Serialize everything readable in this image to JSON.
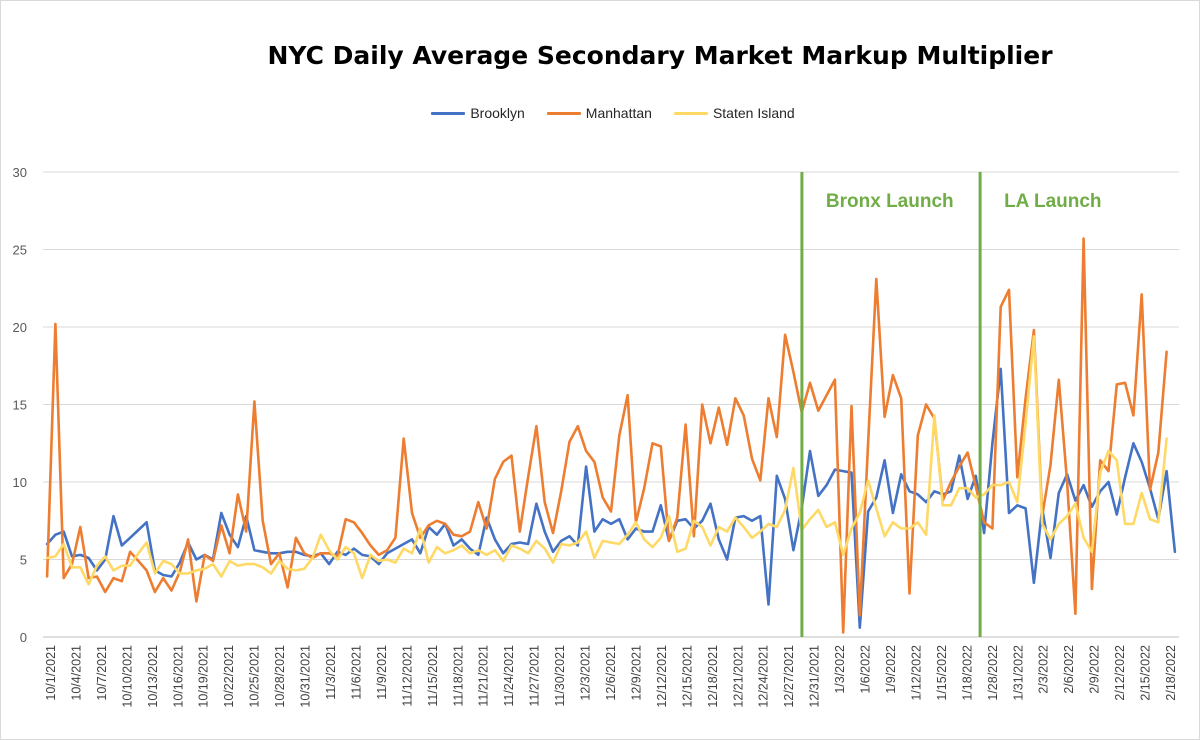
{
  "chart_data": {
    "type": "line",
    "title": "NYC Daily Average Secondary Market Markup Multiplier",
    "xlabel": "",
    "ylabel": "",
    "ylim": [
      0,
      30
    ],
    "yticks": [
      0,
      5,
      10,
      15,
      20,
      25,
      30
    ],
    "grid": "horizontal",
    "legend_position": "top",
    "x_tick_labels": [
      "10/1/2021",
      "10/4/2021",
      "10/7/2021",
      "10/10/2021",
      "10/13/2021",
      "10/16/2021",
      "10/19/2021",
      "10/22/2021",
      "10/25/2021",
      "10/28/2021",
      "10/31/2021",
      "11/3/2021",
      "11/6/2021",
      "11/9/2021",
      "11/12/2021",
      "11/15/2021",
      "11/18/2021",
      "11/21/2021",
      "11/24/2021",
      "11/27/2021",
      "11/30/2021",
      "12/3/2021",
      "12/6/2021",
      "12/9/2021",
      "12/12/2021",
      "12/15/2021",
      "12/18/2021",
      "12/21/2021",
      "12/24/2021",
      "12/27/2021",
      "12/31/2021",
      "1/3/2022",
      "1/6/2022",
      "1/9/2022",
      "1/12/2022",
      "1/15/2022",
      "1/18/2022",
      "1/28/2022",
      "1/31/2022",
      "2/3/2022",
      "2/6/2022",
      "2/9/2022",
      "2/12/2022",
      "2/15/2022",
      "2/18/2022"
    ],
    "series": [
      {
        "name": "Brooklyn",
        "color": "#4472c4",
        "values": [
          6.0,
          6.6,
          6.8,
          5.2,
          5.3,
          5.1,
          4.3,
          5.0,
          7.8,
          5.9,
          6.4,
          6.9,
          7.4,
          4.3,
          4.0,
          3.9,
          4.8,
          6.1,
          5.0,
          5.3,
          5.0,
          8.0,
          6.6,
          5.8,
          7.8,
          5.6,
          5.5,
          5.4,
          5.4,
          5.5,
          5.5,
          5.3,
          5.2,
          5.4,
          4.7,
          5.5,
          5.3,
          5.7,
          5.3,
          5.2,
          4.7,
          5.4,
          5.7,
          6.0,
          6.3,
          5.4,
          7.1,
          6.6,
          7.3,
          5.9,
          6.3,
          5.7,
          5.3,
          7.7,
          6.3,
          5.4,
          6.0,
          6.1,
          6.0,
          8.6,
          6.8,
          5.5,
          6.2,
          6.5,
          5.9,
          11.0,
          6.8,
          7.6,
          7.3,
          7.6,
          6.3,
          7.0,
          6.8,
          6.8,
          8.5,
          6.2,
          7.5,
          7.6,
          7.0,
          7.5,
          8.6,
          6.3,
          5.0,
          7.7,
          7.8,
          7.5,
          7.8,
          2.1,
          10.4,
          8.9,
          5.6,
          8.3,
          12.0,
          9.1,
          9.8,
          10.8,
          10.7,
          10.6,
          0.6,
          8.1,
          9.0,
          11.4,
          8.0,
          10.5,
          9.4,
          9.2,
          8.7,
          9.4,
          9.2,
          9.4,
          11.7,
          8.9,
          10.4,
          6.7,
          12.5,
          17.3,
          8.0,
          8.5,
          8.3,
          3.5,
          8.3,
          5.1,
          9.3,
          10.5,
          8.8,
          9.8,
          8.4,
          9.4,
          10.0,
          7.9,
          10.3,
          12.5,
          11.3,
          9.6,
          7.6,
          10.7,
          5.5
        ]
      },
      {
        "name": "Manhattan",
        "color": "#ed7d31",
        "values": [
          3.9,
          20.2,
          3.8,
          4.7,
          7.1,
          3.8,
          3.9,
          2.9,
          3.8,
          3.6,
          5.5,
          4.9,
          4.3,
          2.9,
          3.8,
          3.0,
          4.2,
          6.3,
          2.3,
          5.3,
          4.9,
          7.2,
          5.4,
          9.2,
          6.8,
          15.2,
          7.5,
          4.7,
          5.4,
          3.2,
          6.4,
          5.4,
          5.1,
          5.4,
          5.4,
          5.2,
          7.6,
          7.4,
          6.7,
          5.9,
          5.3,
          5.6,
          6.4,
          12.8,
          8.0,
          6.4,
          7.2,
          7.5,
          7.3,
          6.6,
          6.5,
          6.8,
          8.7,
          7.0,
          10.2,
          11.3,
          11.7,
          6.8,
          10.3,
          13.6,
          8.7,
          6.7,
          9.4,
          12.6,
          13.6,
          12.0,
          11.3,
          9.0,
          8.1,
          13.0,
          15.6,
          7.4,
          9.6,
          12.5,
          12.3,
          6.2,
          7.7,
          13.7,
          6.5,
          15.0,
          12.5,
          14.8,
          12.4,
          15.4,
          14.3,
          11.5,
          10.1,
          15.4,
          12.9,
          19.5,
          17.1,
          14.5,
          16.4,
          14.6,
          15.6,
          16.6,
          0.3,
          14.9,
          1.4,
          12.5,
          23.1,
          14.2,
          16.9,
          15.4,
          2.8,
          13.0,
          15.0,
          14.1,
          8.8,
          10.0,
          11.0,
          11.9,
          9.7,
          7.4,
          7.0,
          21.3,
          22.4,
          10.3,
          15.4,
          19.8,
          7.8,
          11.1,
          16.6,
          10.0,
          1.5,
          25.7,
          3.1,
          11.4,
          10.7,
          16.3,
          16.4,
          14.3,
          22.1,
          9.5,
          11.9,
          18.4
        ]
      },
      {
        "name": "Staten Island",
        "color": "#ffd966",
        "values": [
          5.1,
          5.2,
          6.0,
          4.5,
          4.5,
          3.4,
          4.6,
          5.2,
          4.3,
          4.6,
          4.6,
          5.4,
          6.1,
          4.1,
          4.9,
          4.7,
          4.1,
          4.1,
          4.3,
          4.4,
          4.7,
          3.9,
          4.9,
          4.6,
          4.7,
          4.7,
          4.5,
          4.1,
          4.9,
          4.4,
          4.3,
          4.4,
          5.1,
          6.6,
          5.6,
          5.0,
          5.8,
          5.4,
          3.8,
          5.3,
          4.9,
          5.0,
          4.8,
          5.7,
          5.4,
          7.0,
          4.8,
          5.8,
          5.4,
          5.6,
          5.9,
          5.4,
          5.6,
          5.3,
          5.6,
          4.9,
          5.9,
          5.7,
          5.4,
          6.2,
          5.7,
          4.8,
          6.0,
          5.9,
          6.1,
          6.8,
          5.1,
          6.2,
          6.1,
          6.0,
          6.6,
          7.4,
          6.3,
          5.8,
          6.4,
          7.8,
          5.5,
          5.7,
          7.5,
          7.1,
          5.9,
          7.1,
          6.8,
          7.7,
          7.1,
          6.4,
          6.8,
          7.3,
          7.1,
          8.2,
          10.9,
          6.9,
          7.6,
          8.2,
          7.1,
          7.4,
          5.3,
          7.0,
          8.0,
          10.1,
          8.3,
          6.5,
          7.4,
          7.0,
          7.0,
          7.4,
          6.6,
          14.3,
          8.5,
          8.5,
          9.6,
          9.6,
          9.0,
          9.2,
          9.8,
          9.8,
          10.0,
          8.7,
          13.8,
          19.4,
          7.3,
          6.3,
          7.3,
          7.8,
          8.6,
          6.4,
          5.5,
          10.6,
          12.0,
          11.4,
          7.3,
          7.3,
          9.3,
          7.6,
          7.4,
          12.8
        ]
      }
    ],
    "annotations": [
      {
        "label": "Bronx Launch",
        "color": "#70ad47",
        "after_tick": "12/27/2021"
      },
      {
        "label": "LA Launch",
        "color": "#70ad47",
        "after_tick": "1/18/2022"
      }
    ]
  }
}
